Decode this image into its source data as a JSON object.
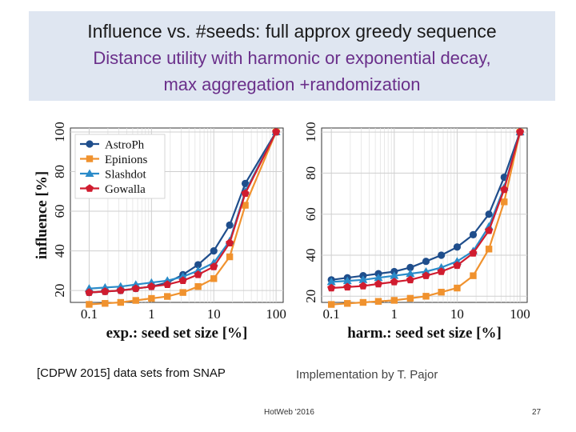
{
  "header": {
    "line1": "Influence vs. #seeds:  full approx greedy sequence",
    "line2": "Distance utility with harmonic or exponential decay,",
    "line3": "max aggregation +randomization"
  },
  "chart_data": [
    {
      "type": "line",
      "xscale": "log",
      "xlim": [
        0.05,
        130
      ],
      "ylim": [
        14,
        102
      ],
      "xticks": [
        {
          "v": 0.1,
          "label": "0.1"
        },
        {
          "v": 1,
          "label": "1"
        },
        {
          "v": 10,
          "label": "10"
        },
        {
          "v": 100,
          "label": "100"
        }
      ],
      "yticks": [
        20,
        40,
        60,
        80,
        100
      ],
      "xlabel": "exp.: seed set size [%]",
      "ylabel": "influence [%]",
      "legend": "top-left",
      "grid": true,
      "x": [
        0.06,
        0.1,
        0.18,
        0.32,
        0.56,
        1,
        1.8,
        3.2,
        5.6,
        10,
        18,
        32,
        56,
        100
      ],
      "series": [
        {
          "name": "AstroPh",
          "marker": "circle",
          "color": "#1f4e8c",
          "values": [
            null,
            19,
            19.5,
            20,
            21,
            22,
            24,
            28,
            33,
            40,
            53,
            74,
            null,
            100
          ]
        },
        {
          "name": "Epinions",
          "marker": "square",
          "color": "#f0922e",
          "values": [
            null,
            13,
            13.5,
            14,
            15,
            16,
            17,
            19,
            22,
            26,
            37,
            63,
            null,
            100
          ]
        },
        {
          "name": "Slashdot",
          "marker": "triangle",
          "color": "#2a8bc9",
          "values": [
            null,
            21,
            21.5,
            22,
            23,
            24,
            25,
            27,
            30,
            34,
            45,
            70,
            null,
            100
          ]
        },
        {
          "name": "Gowalla",
          "marker": "pentagon",
          "color": "#d01c2f",
          "values": [
            null,
            19,
            19.5,
            20,
            21,
            22,
            23,
            25,
            28,
            32,
            44,
            69,
            null,
            100
          ]
        }
      ]
    },
    {
      "type": "line",
      "xscale": "log",
      "xlim": [
        0.07,
        130
      ],
      "ylim": [
        17,
        102
      ],
      "xticks": [
        {
          "v": 0.1,
          "label": "0.1"
        },
        {
          "v": 1,
          "label": "1"
        },
        {
          "v": 10,
          "label": "10"
        },
        {
          "v": 100,
          "label": "100"
        }
      ],
      "yticks": [
        20,
        40,
        60,
        80,
        100
      ],
      "xlabel": "harm.: seed set size [%]",
      "ylabel": "",
      "grid": true,
      "x": [
        0.1,
        0.18,
        0.32,
        0.56,
        1,
        1.8,
        3.2,
        5.6,
        10,
        18,
        32,
        56,
        100
      ],
      "series": [
        {
          "name": "AstroPh",
          "marker": "circle",
          "color": "#1f4e8c",
          "values": [
            28,
            29,
            30,
            31,
            32,
            34,
            37,
            40,
            44,
            50,
            60,
            78,
            100
          ]
        },
        {
          "name": "Epinions",
          "marker": "square",
          "color": "#f0922e",
          "values": [
            16,
            16.5,
            17,
            17.5,
            18,
            19,
            20,
            22,
            24,
            30,
            43,
            66,
            100
          ]
        },
        {
          "name": "Slashdot",
          "marker": "triangle",
          "color": "#2a8bc9",
          "values": [
            27,
            27.5,
            28,
            29,
            30,
            31,
            32,
            34,
            37,
            42,
            54,
            73,
            100
          ]
        },
        {
          "name": "Gowalla",
          "marker": "pentagon",
          "color": "#d01c2f",
          "values": [
            24,
            24.5,
            25,
            26,
            27,
            28,
            30,
            32,
            35,
            41,
            52,
            72,
            100
          ]
        }
      ]
    }
  ],
  "footer": {
    "reference": "[CDPW  2015]  data sets from SNAP",
    "implementation": "Implementation by T. Pajor",
    "venue": "HotWeb '2016",
    "page": "27"
  }
}
